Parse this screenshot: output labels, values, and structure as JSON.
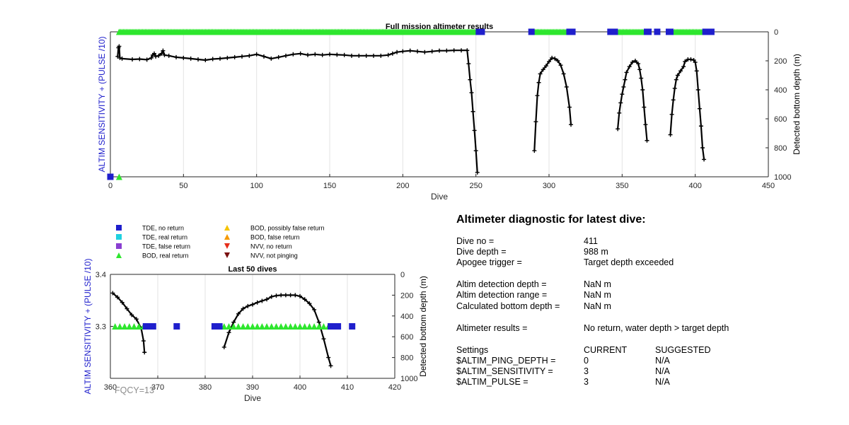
{
  "chart_data": [
    {
      "type": "line",
      "title": "Full mission altimeter results",
      "xlabel": "Dive",
      "ylabel_left": "ALTIM SENSITIVITY + (PULSE /10)",
      "ylabel_right": "Detected bottom depth (m)",
      "xlim": [
        0,
        450
      ],
      "x_ticks": [
        "0",
        "50",
        "100",
        "150",
        "200",
        "250",
        "300",
        "350",
        "400",
        "450"
      ],
      "right_ylim": [
        0,
        1000
      ],
      "right_y_ticks": [
        "0",
        "200",
        "400",
        "600",
        "800",
        "1000"
      ],
      "grid": "vertical",
      "series": [
        {
          "name": "Detected bottom depth",
          "axis": "right",
          "color": "#000000",
          "segments": [
            [
              [
                5,
                170
              ],
              [
                5.5,
                110
              ],
              [
                6,
                100
              ],
              [
                6.5,
                180
              ],
              [
                8,
                185
              ],
              [
                15,
                190
              ],
              [
                20,
                188
              ],
              [
                25,
                192
              ],
              [
                28,
                180
              ],
              [
                29,
                160
              ],
              [
                30,
                150
              ],
              [
                31,
                170
              ],
              [
                33,
                165
              ],
              [
                35,
                150
              ],
              [
                36,
                130
              ],
              [
                37,
                160
              ],
              [
                40,
                165
              ],
              [
                45,
                175
              ],
              [
                50,
                180
              ],
              [
                55,
                185
              ],
              [
                60,
                190
              ],
              [
                65,
                195
              ],
              [
                70,
                188
              ],
              [
                75,
                185
              ],
              [
                80,
                180
              ],
              [
                85,
                175
              ],
              [
                90,
                170
              ],
              [
                95,
                165
              ],
              [
                100,
                155
              ],
              [
                105,
                170
              ],
              [
                110,
                185
              ],
              [
                115,
                175
              ],
              [
                120,
                165
              ],
              [
                125,
                155
              ],
              [
                130,
                150
              ],
              [
                135,
                160
              ],
              [
                140,
                155
              ],
              [
                145,
                160
              ],
              [
                150,
                155
              ],
              [
                155,
                158
              ],
              [
                160,
                160
              ],
              [
                165,
                165
              ],
              [
                170,
                165
              ],
              [
                175,
                165
              ],
              [
                180,
                165
              ],
              [
                185,
                165
              ],
              [
                190,
                160
              ],
              [
                193,
                150
              ],
              [
                196,
                140
              ],
              [
                200,
                135
              ],
              [
                205,
                130
              ],
              [
                210,
                135
              ],
              [
                215,
                140
              ],
              [
                220,
                135
              ],
              [
                225,
                130
              ],
              [
                230,
                130
              ],
              [
                235,
                128
              ],
              [
                240,
                128
              ],
              [
                244,
                128
              ],
              [
                245,
                220
              ],
              [
                246,
                330
              ],
              [
                247,
                420
              ],
              [
                248,
                550
              ],
              [
                249,
                680
              ],
              [
                250,
                820
              ],
              [
                251,
                970
              ]
            ],
            [
              [
                290,
                820
              ],
              [
                291,
                620
              ],
              [
                292,
                440
              ],
              [
                293,
                350
              ],
              [
                294,
                290
              ],
              [
                296,
                260
              ],
              [
                298,
                235
              ],
              [
                300,
                205
              ],
              [
                302,
                180
              ],
              [
                304,
                185
              ],
              [
                306,
                200
              ],
              [
                308,
                230
              ],
              [
                310,
                290
              ],
              [
                312,
                380
              ],
              [
                314,
                520
              ],
              [
                315,
                640
              ]
            ],
            [
              [
                347,
                670
              ],
              [
                348,
                560
              ],
              [
                349,
                490
              ],
              [
                350,
                430
              ],
              [
                351,
                380
              ],
              [
                352,
                330
              ],
              [
                353,
                280
              ],
              [
                355,
                240
              ],
              [
                357,
                210
              ],
              [
                359,
                200
              ],
              [
                361,
                220
              ],
              [
                362,
                260
              ],
              [
                363,
                320
              ],
              [
                364,
                400
              ],
              [
                365,
                520
              ],
              [
                366,
                640
              ],
              [
                367,
                750
              ]
            ],
            [
              [
                383,
                710
              ],
              [
                384,
                570
              ],
              [
                385,
                470
              ],
              [
                386,
                390
              ],
              [
                387,
                330
              ],
              [
                388,
                300
              ],
              [
                390,
                270
              ],
              [
                392,
                240
              ],
              [
                393,
                205
              ],
              [
                395,
                190
              ],
              [
                397,
                190
              ],
              [
                399,
                195
              ],
              [
                400,
                210
              ],
              [
                401,
                270
              ],
              [
                402,
                400
              ],
              [
                403,
                530
              ],
              [
                404,
                650
              ],
              [
                405,
                800
              ],
              [
                406,
                880
              ]
            ]
          ]
        }
      ],
      "markers": [
        {
          "legend": "TDE, no return",
          "color": "#1f1fcc",
          "shape": "square",
          "axis": "left",
          "y": 3.2,
          "x": [
            0
          ]
        },
        {
          "legend": "BOD, real return",
          "color": "#2ee62e",
          "shape": "triangle-up",
          "axis": "left",
          "y": 3.2,
          "x": [
            6
          ]
        },
        {
          "legend": "BOD, real return",
          "color": "#2ee62e",
          "shape": "triangle-up",
          "axis": "right",
          "y": 0,
          "x_ranges": [
            [
              6,
              252
            ],
            [
              290,
              313
            ],
            [
              346,
              366
            ],
            [
              382,
              406
            ]
          ],
          "step": 1
        },
        {
          "legend": "TDE, no return",
          "color": "#1f1fcc",
          "shape": "square",
          "axis": "right",
          "y": 0,
          "x": [
            252,
            253,
            254,
            288,
            314,
            315,
            316,
            342,
            343,
            344,
            345,
            367,
            368,
            374,
            382,
            383,
            407,
            408,
            411
          ]
        }
      ]
    },
    {
      "type": "line",
      "title": "Last 50 dives",
      "xlabel": "Dive",
      "ylabel_left": "ALTIM SENSITIVITY + (PULSE /10)",
      "ylabel_right": "Detected bottom depth (m)",
      "xlim": [
        360,
        420
      ],
      "x_ticks": [
        "360",
        "370",
        "380",
        "390",
        "400",
        "410",
        "420"
      ],
      "left_ylim": [
        3.2,
        3.4
      ],
      "left_y_ticks": [
        "3.3",
        "3.4"
      ],
      "right_ylim": [
        0,
        1000
      ],
      "right_y_ticks": [
        "0",
        "200",
        "400",
        "600",
        "800",
        "1000"
      ],
      "grid": "vertical",
      "series": [
        {
          "name": "Detected bottom depth",
          "axis": "right",
          "color": "#000000",
          "segments": [
            [
              [
                360.5,
                180
              ],
              [
                361.5,
                220
              ],
              [
                362.5,
                270
              ],
              [
                363.5,
                330
              ],
              [
                364.5,
                390
              ],
              [
                365.5,
                430
              ],
              [
                366.5,
                520
              ],
              [
                367,
                640
              ],
              [
                367.2,
                750
              ]
            ],
            [
              [
                384,
                700
              ],
              [
                385,
                560
              ],
              [
                386,
                460
              ],
              [
                387,
                380
              ],
              [
                388,
                330
              ],
              [
                389,
                305
              ],
              [
                390,
                290
              ],
              [
                391,
                270
              ],
              [
                392,
                255
              ],
              [
                393,
                240
              ],
              [
                394,
                215
              ],
              [
                395,
                205
              ],
              [
                396,
                200
              ],
              [
                397,
                200
              ],
              [
                398,
                200
              ],
              [
                399,
                200
              ],
              [
                400,
                210
              ],
              [
                401,
                240
              ],
              [
                402,
                280
              ],
              [
                403,
                340
              ],
              [
                404,
                460
              ],
              [
                405,
                620
              ],
              [
                406,
                800
              ],
              [
                406.5,
                880
              ]
            ]
          ]
        }
      ],
      "markers": [
        {
          "legend": "BOD, real return",
          "color": "#2ee62e",
          "shape": "triangle-up",
          "axis": "left",
          "y": 3.3,
          "x_ranges": [
            [
              361,
              367
            ],
            [
              384,
              406
            ]
          ],
          "step": 1
        },
        {
          "legend": "TDE, no return",
          "color": "#1f1fcc",
          "shape": "square",
          "axis": "left",
          "y": 3.3,
          "x": [
            367.5,
            368,
            368.5,
            369,
            374,
            382,
            383,
            406.5,
            407,
            407.5,
            408,
            411
          ]
        }
      ]
    }
  ],
  "legend": {
    "items": [
      {
        "label": "TDE, no return",
        "color": "#1f1fcc",
        "shape": "square"
      },
      {
        "label": "TDE, real return",
        "color": "#1fd1e0",
        "shape": "square"
      },
      {
        "label": "TDE, false return",
        "color": "#8a3fd1",
        "shape": "square"
      },
      {
        "label": "BOD, real return",
        "color": "#2ee62e",
        "shape": "triangle-up"
      },
      {
        "label": "BOD, possibly false return",
        "color": "#f5c400",
        "shape": "triangle-up"
      },
      {
        "label": "BOD, false return",
        "color": "#f59a00",
        "shape": "triangle-up"
      },
      {
        "label": "NVV, no return",
        "color": "#e62e1a",
        "shape": "triangle-down"
      },
      {
        "label": "NVV, not pinging",
        "color": "#7a1010",
        "shape": "triangle-down"
      }
    ]
  },
  "fqcy_label": "FQCY=13",
  "diagnostic": {
    "title": "Altimeter diagnostic for latest dive:",
    "rows": [
      {
        "label": "Dive no =",
        "value": "411"
      },
      {
        "label": "Dive depth =",
        "value": "988 m"
      },
      {
        "label": "Apogee trigger =",
        "value": "Target depth exceeded"
      },
      {
        "label": "Altim detection depth =",
        "value": "NaN m"
      },
      {
        "label": "Altim detection range =",
        "value": "NaN m"
      },
      {
        "label": "Calculated bottom depth =",
        "value": "NaN m"
      },
      {
        "label": "Altimeter results =",
        "value": "No return, water depth > target depth"
      }
    ],
    "settings": {
      "header": {
        "label": "Settings",
        "current": "CURRENT",
        "suggested": "SUGGESTED"
      },
      "rows": [
        {
          "label": "$ALTIM_PING_DEPTH =",
          "current": "0",
          "suggested": "N/A"
        },
        {
          "label": "$ALTIM_SENSITIVITY =",
          "current": "3",
          "suggested": "N/A"
        },
        {
          "label": "$ALTIM_PULSE =",
          "current": "3",
          "suggested": "N/A"
        }
      ]
    }
  }
}
